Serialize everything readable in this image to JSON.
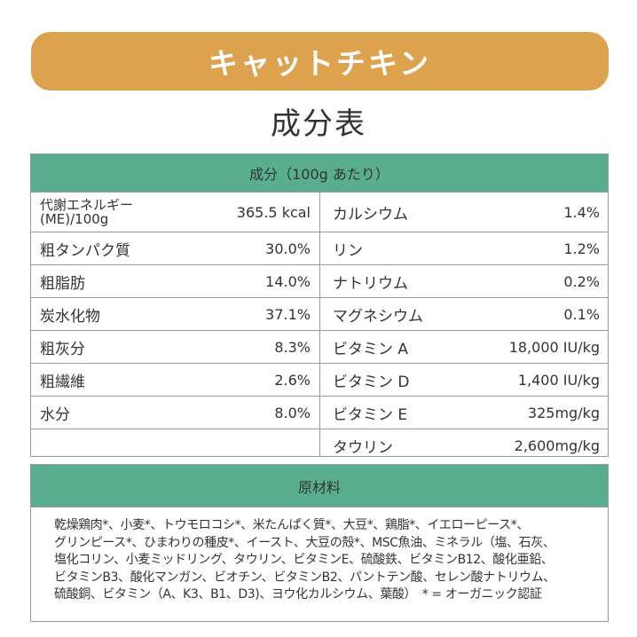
{
  "banner": {
    "title": "キャットチキン",
    "color": "#DDA24E"
  },
  "section_title": "成分表",
  "accent_color": "#58AE8E",
  "nutrition": {
    "header": "成分（100g あたり）",
    "rows": [
      {
        "left_name": "代謝エネルギー(ME)/100g",
        "left_value": "365.5 kcal",
        "right_name": "カルシウム",
        "right_value": "1.4%"
      },
      {
        "left_name": "粗タンパク質",
        "left_value": "30.0%",
        "right_name": "リン",
        "right_value": "1.2%"
      },
      {
        "left_name": "粗脂肪",
        "left_value": "14.0%",
        "right_name": "ナトリウム",
        "right_value": "0.2%"
      },
      {
        "left_name": "炭水化物",
        "left_value": "37.1%",
        "right_name": "マグネシウム",
        "right_value": "0.1%"
      },
      {
        "left_name": "粗灰分",
        "left_value": "8.3%",
        "right_name": "ビタミン A",
        "right_value": "18,000 IU/kg"
      },
      {
        "left_name": "粗繊維",
        "left_value": "2.6%",
        "right_name": "ビタミン D",
        "right_value": "1,400 IU/kg"
      },
      {
        "left_name": "水分",
        "left_value": "8.0%",
        "right_name": "ビタミン E",
        "right_value": "325mg/kg"
      },
      {
        "left_name": "",
        "left_value": "",
        "right_name": "タウリン",
        "right_value": "2,600mg/kg"
      }
    ]
  },
  "ingredients": {
    "header": "原材料",
    "lines": [
      "乾燥鶏肉*、小麦*、トウモロコシ*、米たんぱく質*、大豆*、鶏脂*、イエローピース*、",
      "グリンピース*、ひまわりの種皮*、イースト、大豆の殻*、MSC魚油、ミネラル（塩、石灰、",
      "塩化コリン、小麦ミッドリング、タウリン、ビタミンE、硫酸鉄、ビタミンB12、酸化亜鉛、",
      "ビタミンB3、酸化マンガン、ビオチン、ビタミンB2、パントテン酸、セレン酸ナトリウム、",
      "硫酸銅、ビタミン（A、K3、B1、D3)、ヨウ化カルシウム、葉酸）　* = オーガニック認証"
    ]
  }
}
